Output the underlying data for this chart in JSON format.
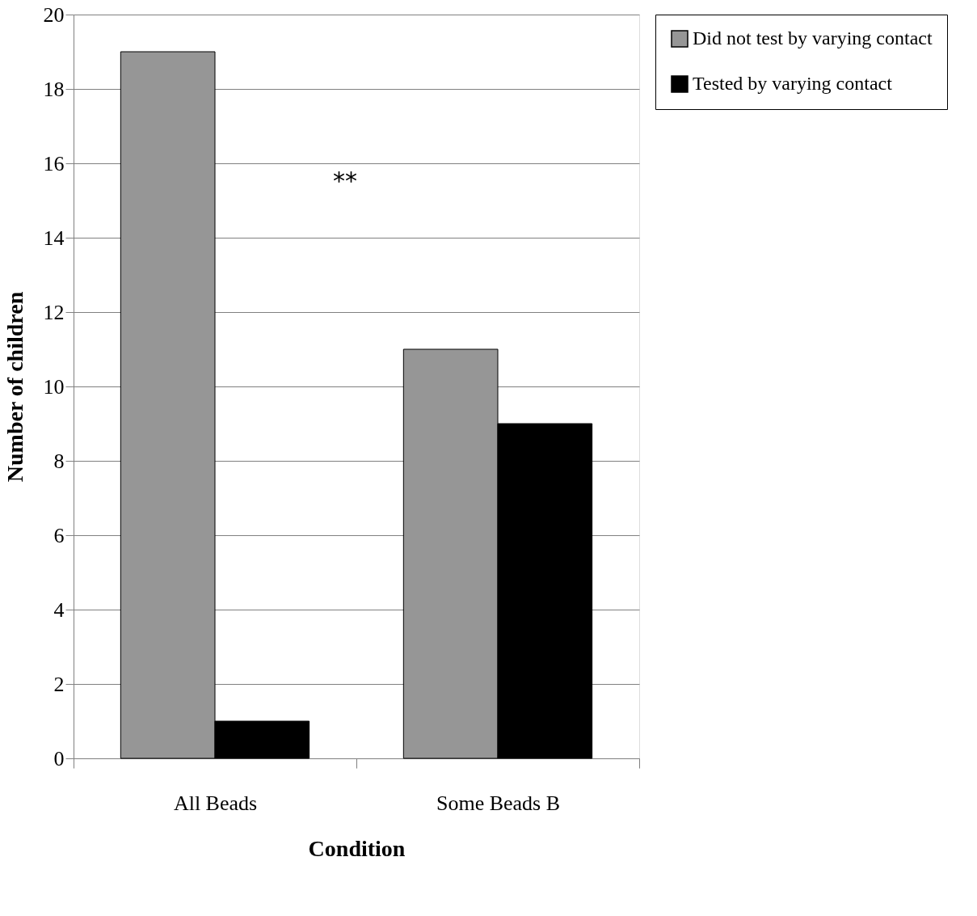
{
  "chart_data": {
    "type": "bar",
    "xlabel": "Condition",
    "ylabel": "Number of children",
    "categories": [
      "All Beads",
      "Some Beads B"
    ],
    "series": [
      {
        "name": "Did not test by varying contact",
        "color": "#969696",
        "values": [
          19,
          11
        ]
      },
      {
        "name": "Tested by varying contact",
        "color": "#000000",
        "values": [
          1,
          9
        ]
      }
    ],
    "ylim": [
      0,
      20
    ],
    "yticks": [
      0,
      2,
      4,
      6,
      8,
      10,
      12,
      14,
      16,
      18,
      20
    ],
    "grid": "y",
    "legend": "right",
    "annotations": [
      "**"
    ]
  }
}
